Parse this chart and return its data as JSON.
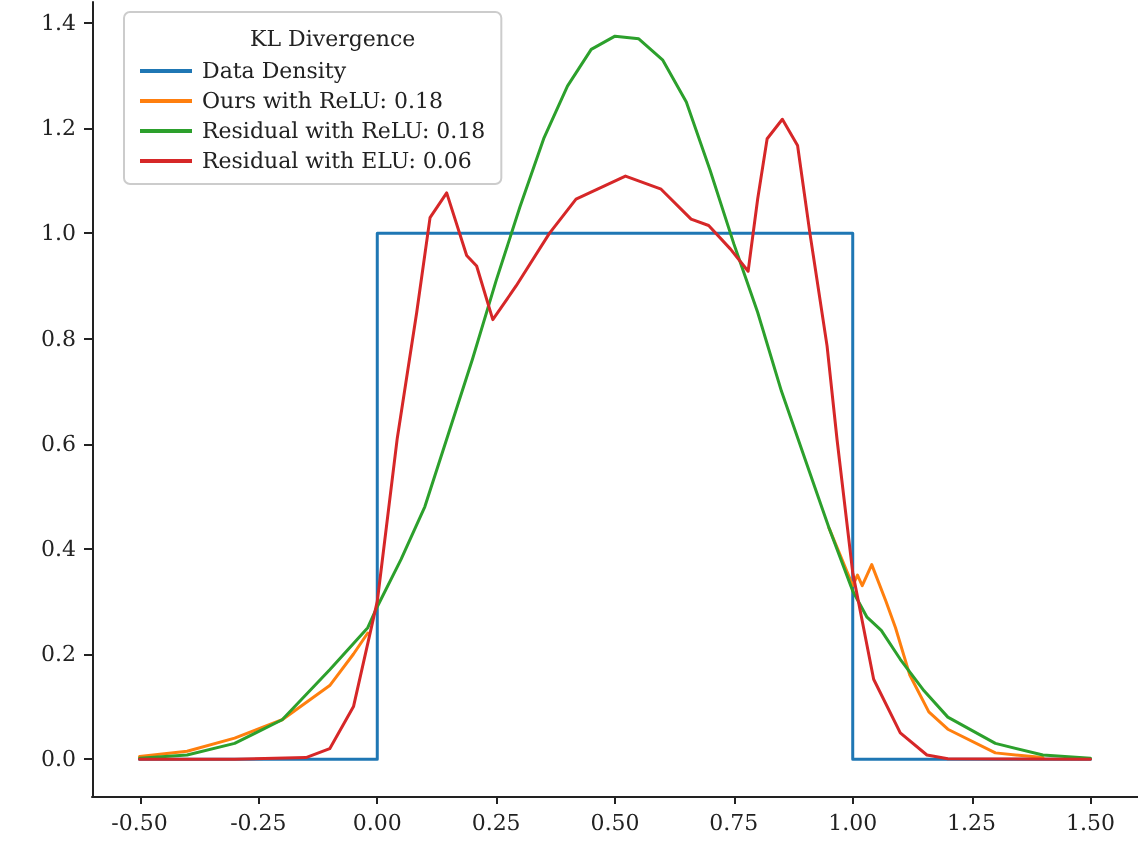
{
  "chart_data": {
    "type": "line",
    "legend_title": "KL Divergence",
    "legend": "top left",
    "grid": false,
    "xlim": [
      -0.6,
      1.6
    ],
    "ylim": [
      -0.07,
      1.44
    ],
    "xticks": [
      {
        "value": -0.5,
        "label": "-0.50"
      },
      {
        "value": -0.25,
        "label": "-0.25"
      },
      {
        "value": 0,
        "label": "0.00"
      },
      {
        "value": 0.25,
        "label": "0.25"
      },
      {
        "value": 0.5,
        "label": "0.50"
      },
      {
        "value": 0.75,
        "label": "0.75"
      },
      {
        "value": 1,
        "label": "1.00"
      },
      {
        "value": 1.25,
        "label": "1.25"
      },
      {
        "value": 1.5,
        "label": "1.50"
      }
    ],
    "yticks": [
      {
        "value": 0,
        "label": "0.0"
      },
      {
        "value": 0.2,
        "label": "0.2"
      },
      {
        "value": 0.4,
        "label": "0.4"
      },
      {
        "value": 0.6,
        "label": "0.6"
      },
      {
        "value": 0.8,
        "label": "0.8"
      },
      {
        "value": 1,
        "label": "1.0"
      },
      {
        "value": 1.2,
        "label": "1.2"
      },
      {
        "value": 1.4,
        "label": "1.4"
      }
    ],
    "series": [
      {
        "name": "Data Density",
        "color": "#1f77b4",
        "x": [
          -0.5,
          0,
          0,
          1,
          1,
          1.5
        ],
        "values": [
          0,
          0,
          1,
          1,
          0,
          0
        ]
      },
      {
        "name": "Ours with ReLU: 0.18",
        "color": "#ff7f0e",
        "x": [
          -0.5,
          -0.4,
          -0.3,
          -0.2,
          -0.1,
          -0.05,
          -0.02,
          0,
          0.05,
          0.1,
          0.15,
          0.2,
          0.25,
          0.3,
          0.35,
          0.4,
          0.45,
          0.5,
          0.55,
          0.6,
          0.65,
          0.7,
          0.75,
          0.8,
          0.85,
          0.9,
          0.95,
          1.0,
          1.01,
          1.02,
          1.04,
          1.07,
          1.09,
          1.12,
          1.16,
          1.2,
          1.3,
          1.4
        ],
        "values": [
          0.005,
          0.015,
          0.04,
          0.075,
          0.14,
          0.2,
          0.24,
          null,
          null,
          null,
          null,
          null,
          null,
          null,
          null,
          null,
          null,
          null,
          null,
          null,
          null,
          null,
          null,
          null,
          null,
          null,
          0.44,
          0.33,
          0.35,
          0.33,
          0.37,
          0.3,
          0.25,
          0.16,
          0.09,
          0.057,
          0.012,
          0.003
        ]
      },
      {
        "name": "Residual with ReLU: 0.18",
        "color": "#2ca02c",
        "x": [
          -0.5,
          -0.4,
          -0.3,
          -0.2,
          -0.1,
          -0.05,
          -0.02,
          0,
          0.05,
          0.1,
          0.15,
          0.2,
          0.25,
          0.3,
          0.35,
          0.4,
          0.45,
          0.5,
          0.55,
          0.6,
          0.65,
          0.7,
          0.75,
          0.8,
          0.85,
          0.9,
          0.95,
          1.0,
          1.03,
          1.06,
          1.1,
          1.15,
          1.2,
          1.3,
          1.4,
          1.5
        ],
        "values": [
          0.002,
          0.008,
          0.03,
          0.075,
          0.17,
          0.22,
          0.25,
          0.29,
          0.38,
          0.48,
          0.62,
          0.76,
          0.91,
          1.05,
          1.18,
          1.28,
          1.35,
          1.375,
          1.37,
          1.33,
          1.25,
          1.12,
          0.98,
          0.85,
          0.7,
          0.57,
          0.44,
          0.32,
          0.27,
          0.245,
          0.19,
          0.13,
          0.08,
          0.03,
          0.008,
          0.002
        ]
      },
      {
        "name": "Residual with ELU: 0.06",
        "color": "#d62728",
        "x": [
          -0.5,
          -0.3,
          -0.15,
          -0.1,
          -0.05,
          0,
          0.042,
          0.083,
          0.111,
          0.146,
          0.188,
          0.209,
          0.243,
          0.292,
          0.362,
          0.418,
          0.522,
          0.597,
          0.66,
          0.697,
          0.743,
          0.78,
          0.8,
          0.82,
          0.852,
          0.884,
          0.91,
          0.946,
          0.967,
          1.0,
          1.044,
          1.1,
          1.156,
          1.2,
          1.5
        ],
        "values": [
          0,
          0,
          0.003,
          0.02,
          0.1,
          0.3,
          0.61,
          0.85,
          1.03,
          1.077,
          0.958,
          0.938,
          0.836,
          0.9,
          1.0,
          1.065,
          1.109,
          1.084,
          1.027,
          1.015,
          0.97,
          0.928,
          1.065,
          1.18,
          1.217,
          1.167,
          1.0,
          0.786,
          0.608,
          0.355,
          0.152,
          0.05,
          0.008,
          0.001,
          0
        ]
      }
    ]
  }
}
